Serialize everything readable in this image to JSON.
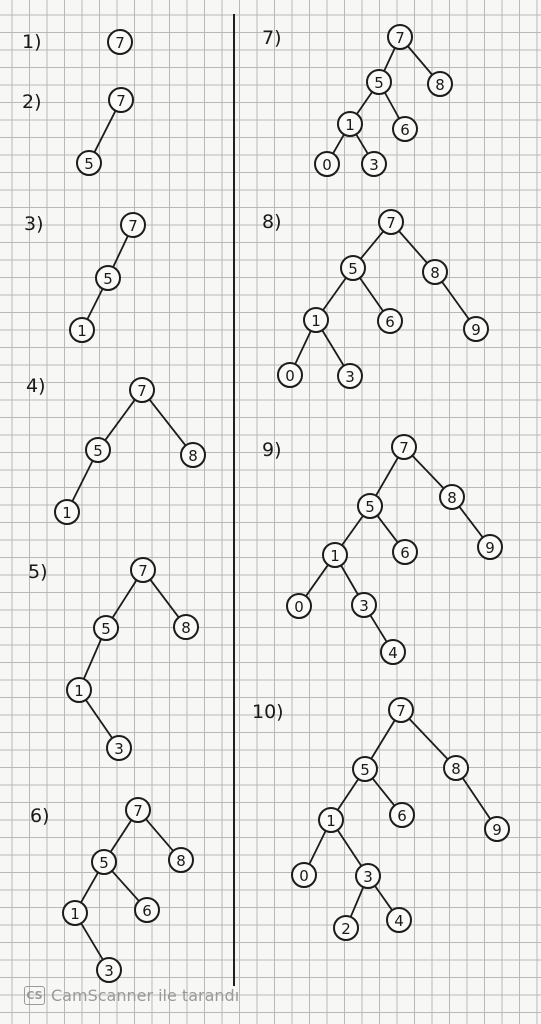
{
  "watermark": {
    "logo": "CS",
    "text": "CamScanner ile tarandı"
  },
  "steps": [
    {
      "label": "1)",
      "nodes": [
        "7"
      ],
      "edges": []
    },
    {
      "label": "2)",
      "nodes": [
        "7",
        "5"
      ],
      "edges": [
        [
          0,
          1
        ]
      ]
    },
    {
      "label": "3)",
      "nodes": [
        "7",
        "5",
        "1"
      ],
      "edges": [
        [
          0,
          1
        ],
        [
          1,
          2
        ]
      ]
    },
    {
      "label": "4)",
      "nodes": [
        "7",
        "5",
        "8",
        "1"
      ],
      "edges": [
        [
          0,
          1
        ],
        [
          0,
          2
        ],
        [
          1,
          3
        ]
      ]
    },
    {
      "label": "5)",
      "nodes": [
        "7",
        "5",
        "8",
        "1",
        "3"
      ],
      "edges": [
        [
          0,
          1
        ],
        [
          0,
          2
        ],
        [
          1,
          3
        ],
        [
          3,
          4
        ]
      ]
    },
    {
      "label": "6)",
      "nodes": [
        "7",
        "5",
        "8",
        "1",
        "6",
        "3"
      ],
      "edges": [
        [
          0,
          1
        ],
        [
          0,
          2
        ],
        [
          1,
          3
        ],
        [
          1,
          4
        ],
        [
          3,
          5
        ]
      ]
    },
    {
      "label": "7)",
      "nodes": [
        "7",
        "5",
        "8",
        "1",
        "6",
        "0",
        "3"
      ],
      "edges": [
        [
          0,
          1
        ],
        [
          0,
          2
        ],
        [
          1,
          3
        ],
        [
          1,
          4
        ],
        [
          3,
          5
        ],
        [
          3,
          6
        ]
      ]
    },
    {
      "label": "8)",
      "nodes": [
        "7",
        "5",
        "8",
        "1",
        "6",
        "9",
        "0",
        "3"
      ],
      "edges": [
        [
          0,
          1
        ],
        [
          0,
          2
        ],
        [
          1,
          3
        ],
        [
          1,
          4
        ],
        [
          2,
          5
        ],
        [
          3,
          6
        ],
        [
          3,
          7
        ]
      ]
    },
    {
      "label": "9)",
      "nodes": [
        "7",
        "5",
        "8",
        "1",
        "6",
        "9",
        "0",
        "3",
        "4"
      ],
      "edges": [
        [
          0,
          1
        ],
        [
          0,
          2
        ],
        [
          1,
          3
        ],
        [
          1,
          4
        ],
        [
          2,
          5
        ],
        [
          3,
          6
        ],
        [
          3,
          7
        ],
        [
          7,
          8
        ]
      ]
    },
    {
      "label": "10)",
      "nodes": [
        "7",
        "5",
        "8",
        "1",
        "6",
        "9",
        "0",
        "3",
        "2",
        "4"
      ],
      "edges": [
        [
          0,
          1
        ],
        [
          0,
          2
        ],
        [
          1,
          3
        ],
        [
          1,
          4
        ],
        [
          2,
          5
        ],
        [
          3,
          6
        ],
        [
          3,
          7
        ],
        [
          7,
          8
        ],
        [
          7,
          9
        ]
      ]
    }
  ]
}
